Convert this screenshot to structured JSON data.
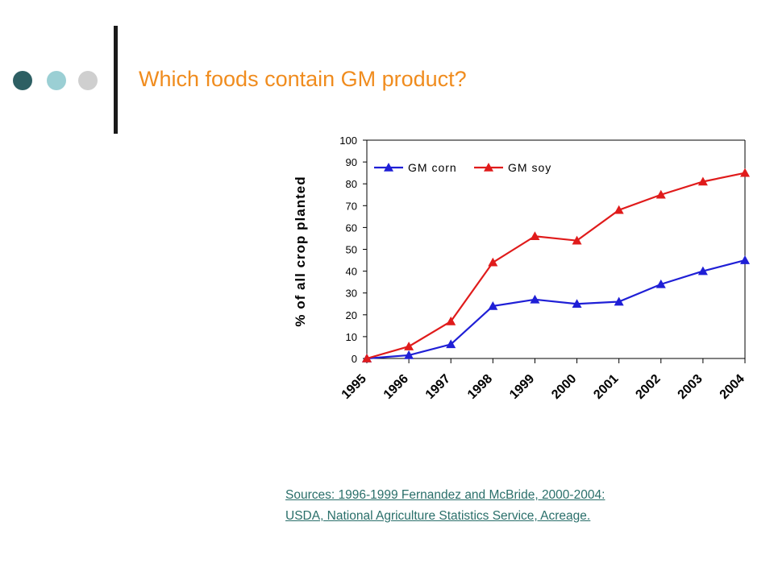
{
  "slide": {
    "title": "Which foods contain GM product?",
    "accent_colors": [
      "#2d5f63",
      "#9bcfd4",
      "#cfcfcf"
    ],
    "title_color": "#f08c1e",
    "sources": {
      "line1": "Sources: 1996-1999 Fernandez and McBride, 2000-2004:",
      "line2": "USDA, National Agriculture Statistics Service, Acreage."
    }
  },
  "chart_data": {
    "type": "line",
    "title": "",
    "xlabel": "",
    "ylabel": "% of all crop planted",
    "x": [
      "1995",
      "1996",
      "1997",
      "1998",
      "1999",
      "2000",
      "2001",
      "2002",
      "2003",
      "2004"
    ],
    "ylim": [
      0,
      100
    ],
    "yticks": [
      0,
      10,
      20,
      30,
      40,
      50,
      60,
      70,
      80,
      90,
      100
    ],
    "grid": false,
    "legend": "top-left",
    "marker": "triangle",
    "series": [
      {
        "name": "GM corn",
        "color": "#1f1fd6",
        "values": [
          0,
          1.5,
          6.5,
          24,
          27,
          25,
          26,
          34,
          40,
          45
        ]
      },
      {
        "name": "GM soy",
        "color": "#e01b1b",
        "values": [
          0,
          5.5,
          17,
          44,
          56,
          54,
          68,
          75,
          81,
          85
        ]
      }
    ]
  }
}
